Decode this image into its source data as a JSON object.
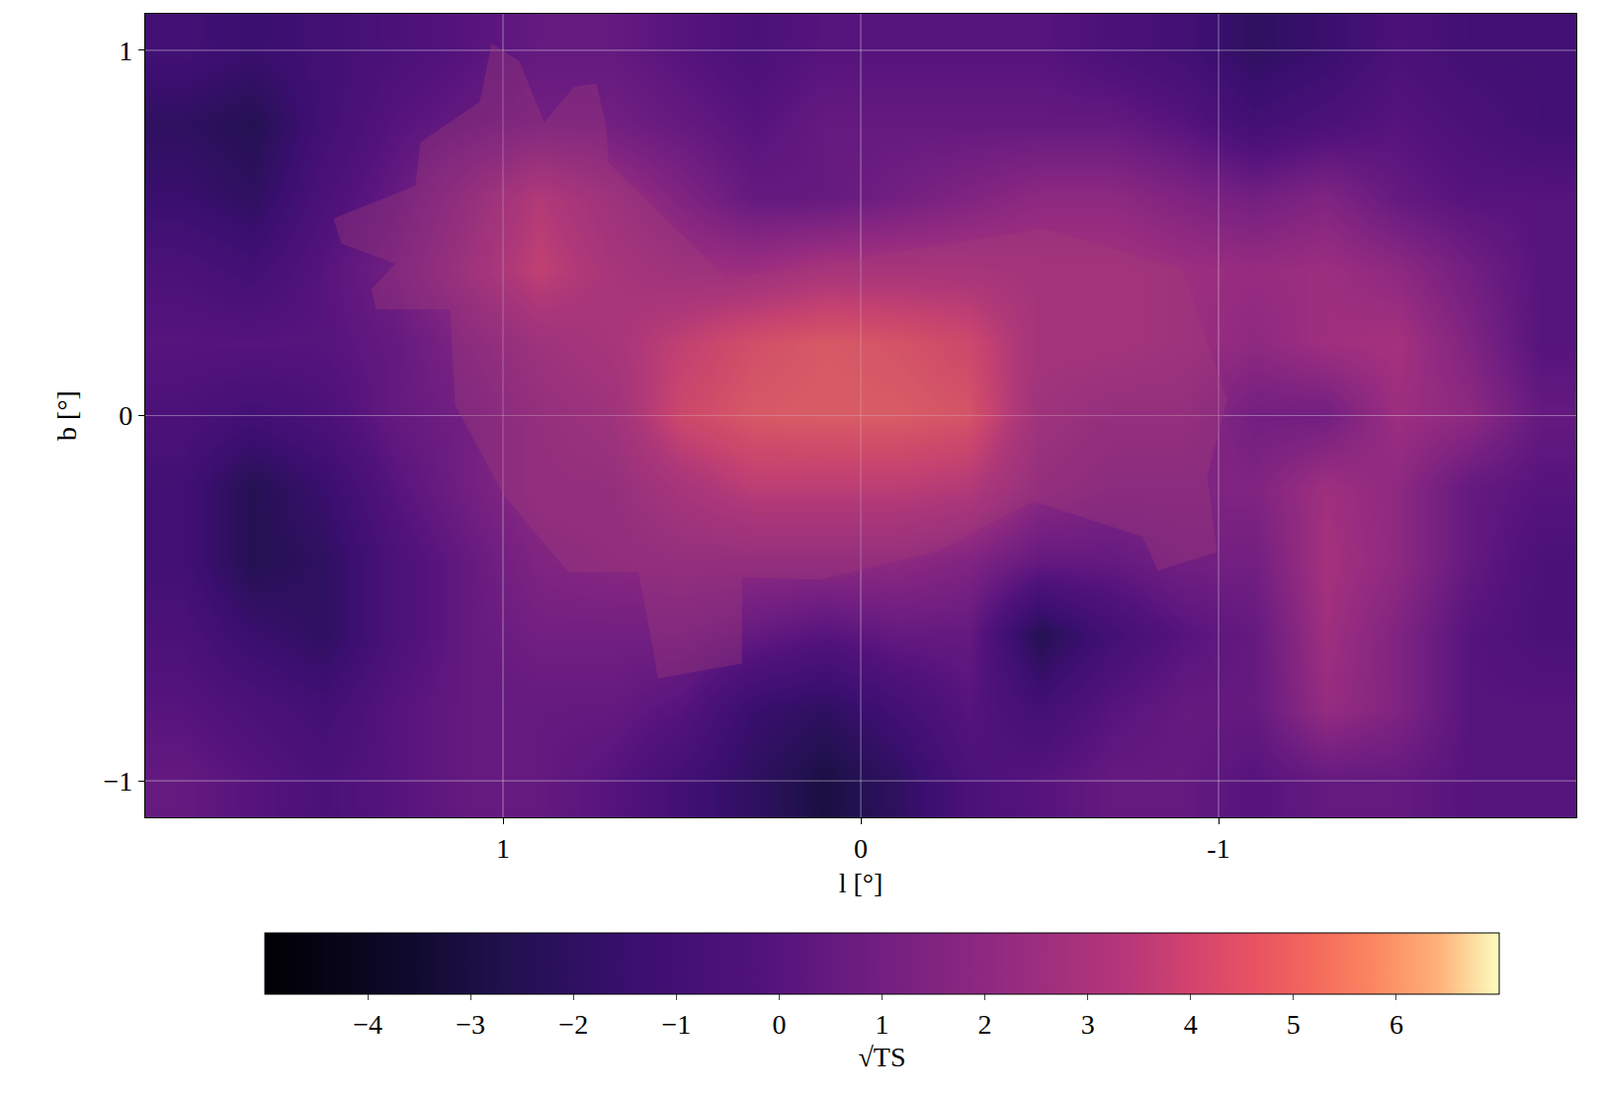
{
  "chart_data": {
    "type": "heatmap",
    "x_label": "l [°]",
    "y_label": "b [°]",
    "x": [
      1.9,
      1.7,
      1.5,
      1.3,
      1.1,
      0.9,
      0.7,
      0.5,
      0.3,
      0.1,
      -0.1,
      -0.3,
      -0.5,
      -0.7,
      -0.9,
      -1.1,
      -1.3,
      -1.5,
      -1.7,
      -1.9
    ],
    "y": [
      -1.0,
      -0.8,
      -0.6,
      -0.4,
      -0.2,
      0.0,
      0.2,
      0.4,
      0.6,
      0.8,
      1.0
    ],
    "z": [
      [
        0.5,
        0,
        -0.5,
        0,
        0.5,
        0.5,
        0,
        -1,
        -2,
        -3,
        -2,
        -0.5,
        0,
        0.5,
        0.5,
        0,
        0.5,
        0.5,
        0,
        0
      ],
      [
        0,
        -0.5,
        -1,
        0,
        0.5,
        0.5,
        0.5,
        0,
        -1.5,
        -2,
        -1,
        0,
        -1,
        0,
        0.5,
        0.5,
        2.3,
        1.5,
        0,
        0
      ],
      [
        -0.5,
        -1.5,
        -2,
        -0.5,
        0.5,
        1,
        1,
        1,
        0.5,
        0,
        0.5,
        0.5,
        -2.5,
        -1,
        0,
        0.5,
        2.6,
        1.5,
        0,
        -0.5
      ],
      [
        -1,
        -2.5,
        -2,
        -0.5,
        0.5,
        1.5,
        1.8,
        2,
        2,
        2,
        2,
        1.5,
        0.5,
        0.5,
        1,
        1,
        2.8,
        2,
        0.5,
        -0.5
      ],
      [
        -1,
        -2.5,
        -1.5,
        0,
        1,
        2,
        2,
        3,
        3.8,
        3.8,
        3.8,
        3.5,
        2,
        1.5,
        1.5,
        1.5,
        2.6,
        2,
        0.5,
        0
      ],
      [
        -0.5,
        -1,
        -0.5,
        0.5,
        1,
        2,
        2.5,
        4.5,
        5.2,
        5.3,
        5.3,
        5,
        2.5,
        2,
        2,
        1,
        1,
        2.5,
        2,
        0.5
      ],
      [
        0,
        0,
        0,
        0.5,
        1.5,
        2.5,
        3,
        4,
        4.8,
        5.2,
        5,
        4.5,
        2.8,
        2.8,
        2.5,
        2,
        2.6,
        2.8,
        1.5,
        0
      ],
      [
        -0.5,
        -1,
        0,
        1,
        2.5,
        4,
        3,
        2.5,
        2.5,
        3,
        3,
        3,
        2.8,
        2.8,
        2.5,
        2.3,
        2.5,
        2,
        1,
        0
      ],
      [
        -1.5,
        -2,
        -0.5,
        0.5,
        2,
        3.5,
        2.5,
        1.5,
        0.5,
        0.5,
        1,
        1.5,
        2,
        2,
        1.5,
        1,
        1.5,
        0.5,
        0,
        0
      ],
      [
        -2,
        -2.5,
        -1,
        0,
        0.5,
        1,
        1,
        0.5,
        0,
        0.5,
        0.5,
        0.5,
        0.5,
        0.5,
        0,
        -1,
        -0.5,
        0,
        -0.5,
        -1
      ],
      [
        -1,
        -1.5,
        -1,
        -0.5,
        0,
        0.5,
        0.5,
        0,
        -0.5,
        0,
        0,
        0,
        0,
        -0.5,
        -1,
        -2,
        -1.5,
        -0.5,
        -1,
        -1
      ]
    ],
    "xlim": [
      2,
      -2
    ],
    "ylim": [
      -1.1,
      1.1
    ],
    "xticks": [
      1,
      0,
      -1
    ],
    "yticks": [
      {
        "value": -1,
        "label": "−1"
      },
      0,
      1
    ],
    "grid": true,
    "colorbar": {
      "title": "√TS",
      "range": [
        -5,
        7
      ],
      "ticks": [
        {
          "value": -4,
          "label": "−4"
        },
        {
          "value": -3,
          "label": "−3"
        },
        {
          "value": -2,
          "label": "−2"
        },
        {
          "value": -1,
          "label": "−1"
        },
        0,
        1,
        2,
        3,
        4,
        5,
        6
      ]
    }
  }
}
